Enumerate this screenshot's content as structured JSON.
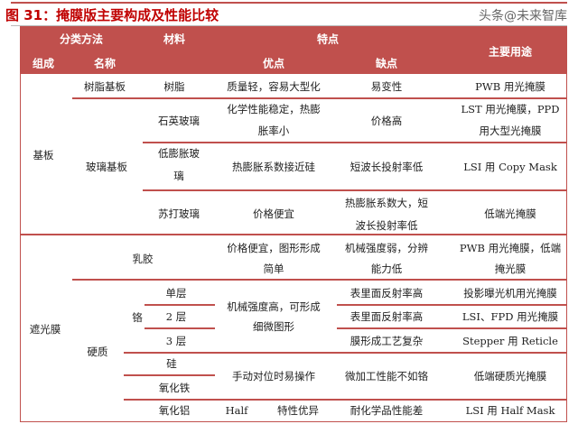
{
  "title": "图 31：掩膜版主要构成及性能比较",
  "header": {
    "classify": "分类方法",
    "material": "材料",
    "features": "特点",
    "usage": "主要用途",
    "composition": "组成",
    "name": "名称",
    "pros": "优点",
    "cons": "缺点"
  },
  "rows": {
    "substrate": "基板",
    "resin_sub": "树脂基板",
    "resin": "树脂",
    "resin_pro": "质量轻，容易大型化",
    "resin_con": "易变性",
    "resin_use": "PWB 用光掩膜",
    "glass_sub": "玻璃基板",
    "quartz": "石英玻璃",
    "quartz_pro1": "化学性能稳定，热膨",
    "quartz_pro2": "胀率小",
    "quartz_con": "价格高",
    "quartz_use1": "LST 用光掩膜，PPD",
    "quartz_use2": "用大型光掩膜",
    "lowexp1": "低膨胀玻",
    "lowexp2": "璃",
    "lowexp_pro": "热膨胀系数接近硅",
    "lowexp_con": "短波长投射率低",
    "lowexp_use": "LSI 用 Copy Mask",
    "soda": "苏打玻璃",
    "soda_pro": "价格便宜",
    "soda_con1": "热膨胀系数大，短",
    "soda_con2": "波长投射率低",
    "soda_use": "低端光掩膜",
    "shield": "遮光膜",
    "emulsion": "乳胶",
    "em_pro1": "价格便宜，图形形成",
    "em_pro2": "简单",
    "em_con1": "机械强度弱，分辨",
    "em_con2": "能力低",
    "em_use1": "PWB 用光掩膜，低端",
    "em_use2": "掩光膜",
    "hard": "硬质",
    "chrome": "铬",
    "single": "单层",
    "double": "2 层",
    "triple": "3 层",
    "cr_pro1": "机械强度高，可形成",
    "cr_pro2": "细微图形",
    "single_con": "表里面反射率高",
    "single_use": "投影曝光机用光掩膜",
    "double_con": "表里面反射率高",
    "double_use": "LSI、FPD 用光掩膜",
    "triple_con": "膜形成工艺复杂",
    "triple_use": "Stepper 用 Reticle",
    "silicon": "硅",
    "iron": "氧化铁",
    "si_pro": "手动对位时易操作",
    "si_con": "微加工性能不如铬",
    "si_use": "低端硬质光掩膜",
    "alumina": "氧化铝",
    "al_pro_a": "Half",
    "al_pro_b": "特性优异",
    "al_con": "耐化学品性能差",
    "al_use": "LSI 用 Half Mask"
  },
  "watermark": "头条@未来智库",
  "colors": {
    "accent": "#c0504d",
    "title": "#c00000"
  }
}
